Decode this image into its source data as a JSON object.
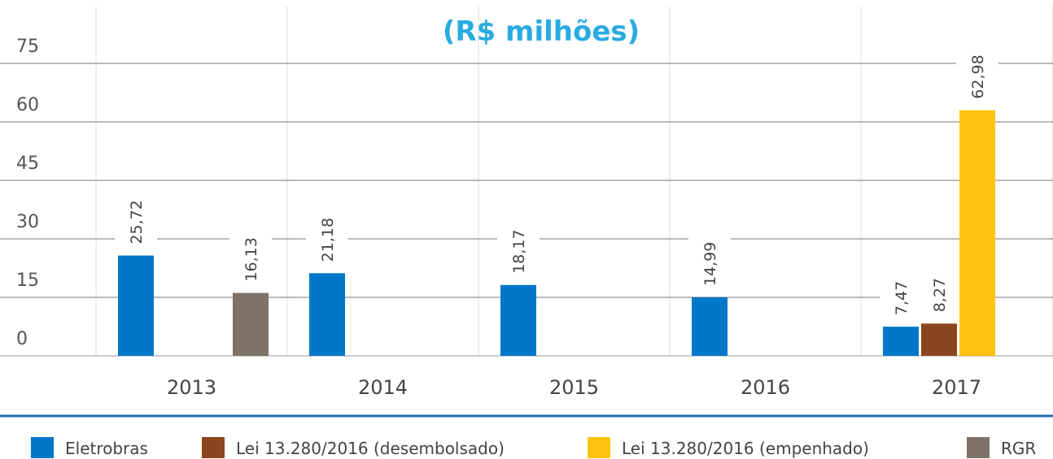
{
  "chart_data": {
    "type": "bar",
    "title": "(R$ milhões)",
    "categories": [
      "2013",
      "2014",
      "2015",
      "2016",
      "2017"
    ],
    "series": [
      {
        "name": "Eletrobras",
        "color": "#0077c8",
        "values": [
          25.72,
          21.18,
          18.17,
          14.99,
          7.47
        ],
        "value_labels": [
          "25,72",
          "21,18",
          "18,17",
          "14,99",
          "7,47"
        ]
      },
      {
        "name": "Lei 13.280/2016 (desembolsado)",
        "color": "#8b4620",
        "values": [
          null,
          null,
          null,
          null,
          8.27
        ],
        "value_labels": [
          null,
          null,
          null,
          null,
          "8,27"
        ]
      },
      {
        "name": "Lei 13.280/2016 (empenhado)",
        "color": "#ffc20e",
        "values": [
          null,
          null,
          null,
          null,
          62.98
        ],
        "value_labels": [
          null,
          null,
          null,
          null,
          "62,98"
        ]
      },
      {
        "name": "RGR",
        "color": "#7f7266",
        "values": [
          16.13,
          null,
          null,
          null,
          null
        ],
        "value_labels": [
          "16,13",
          null,
          null,
          null,
          null
        ]
      }
    ],
    "ylim": [
      0,
      75
    ],
    "yticks": [
      0,
      15,
      30,
      45,
      60,
      75
    ],
    "grid": true
  }
}
